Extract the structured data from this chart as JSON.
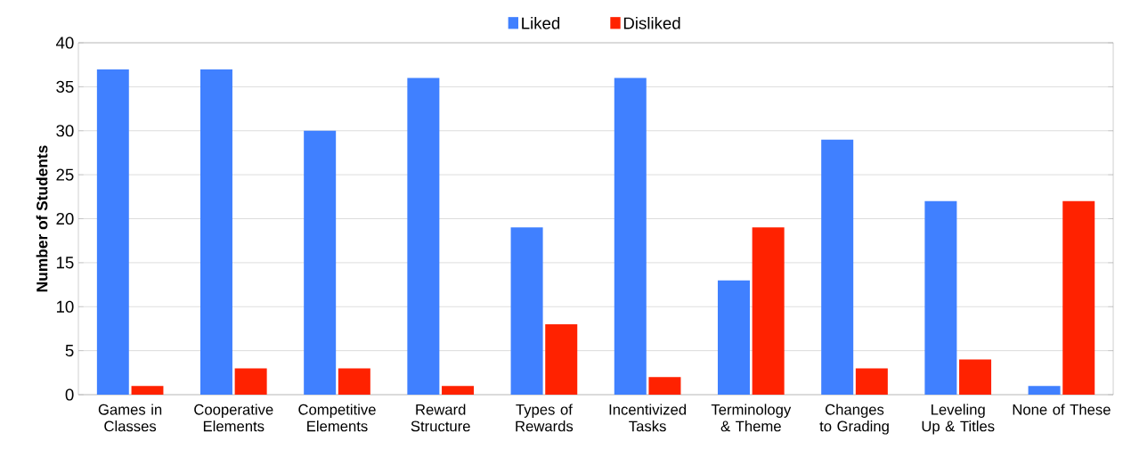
{
  "chart_data": {
    "type": "bar",
    "ylabel": "Number of Students",
    "categories": [
      "Games in Classes",
      "Cooperative Elements",
      "Competitive Elements",
      "Reward Structure",
      "Types of Rewards",
      "Incentivized Tasks",
      "Terminology & Theme",
      "Changes to Grading",
      "Leveling Up & Titles",
      "None of These"
    ],
    "series": [
      {
        "name": "Liked",
        "color": "#4080ff",
        "values": [
          37,
          37,
          30,
          36,
          19,
          36,
          13,
          29,
          22,
          1
        ]
      },
      {
        "name": "Disliked",
        "color": "#ff2200",
        "values": [
          1,
          3,
          3,
          1,
          8,
          2,
          19,
          3,
          4,
          22
        ]
      }
    ],
    "ylim": [
      0,
      40
    ],
    "yticks": [
      0,
      5,
      10,
      15,
      20,
      25,
      30,
      35,
      40
    ],
    "grid": "y",
    "legend": "top"
  }
}
